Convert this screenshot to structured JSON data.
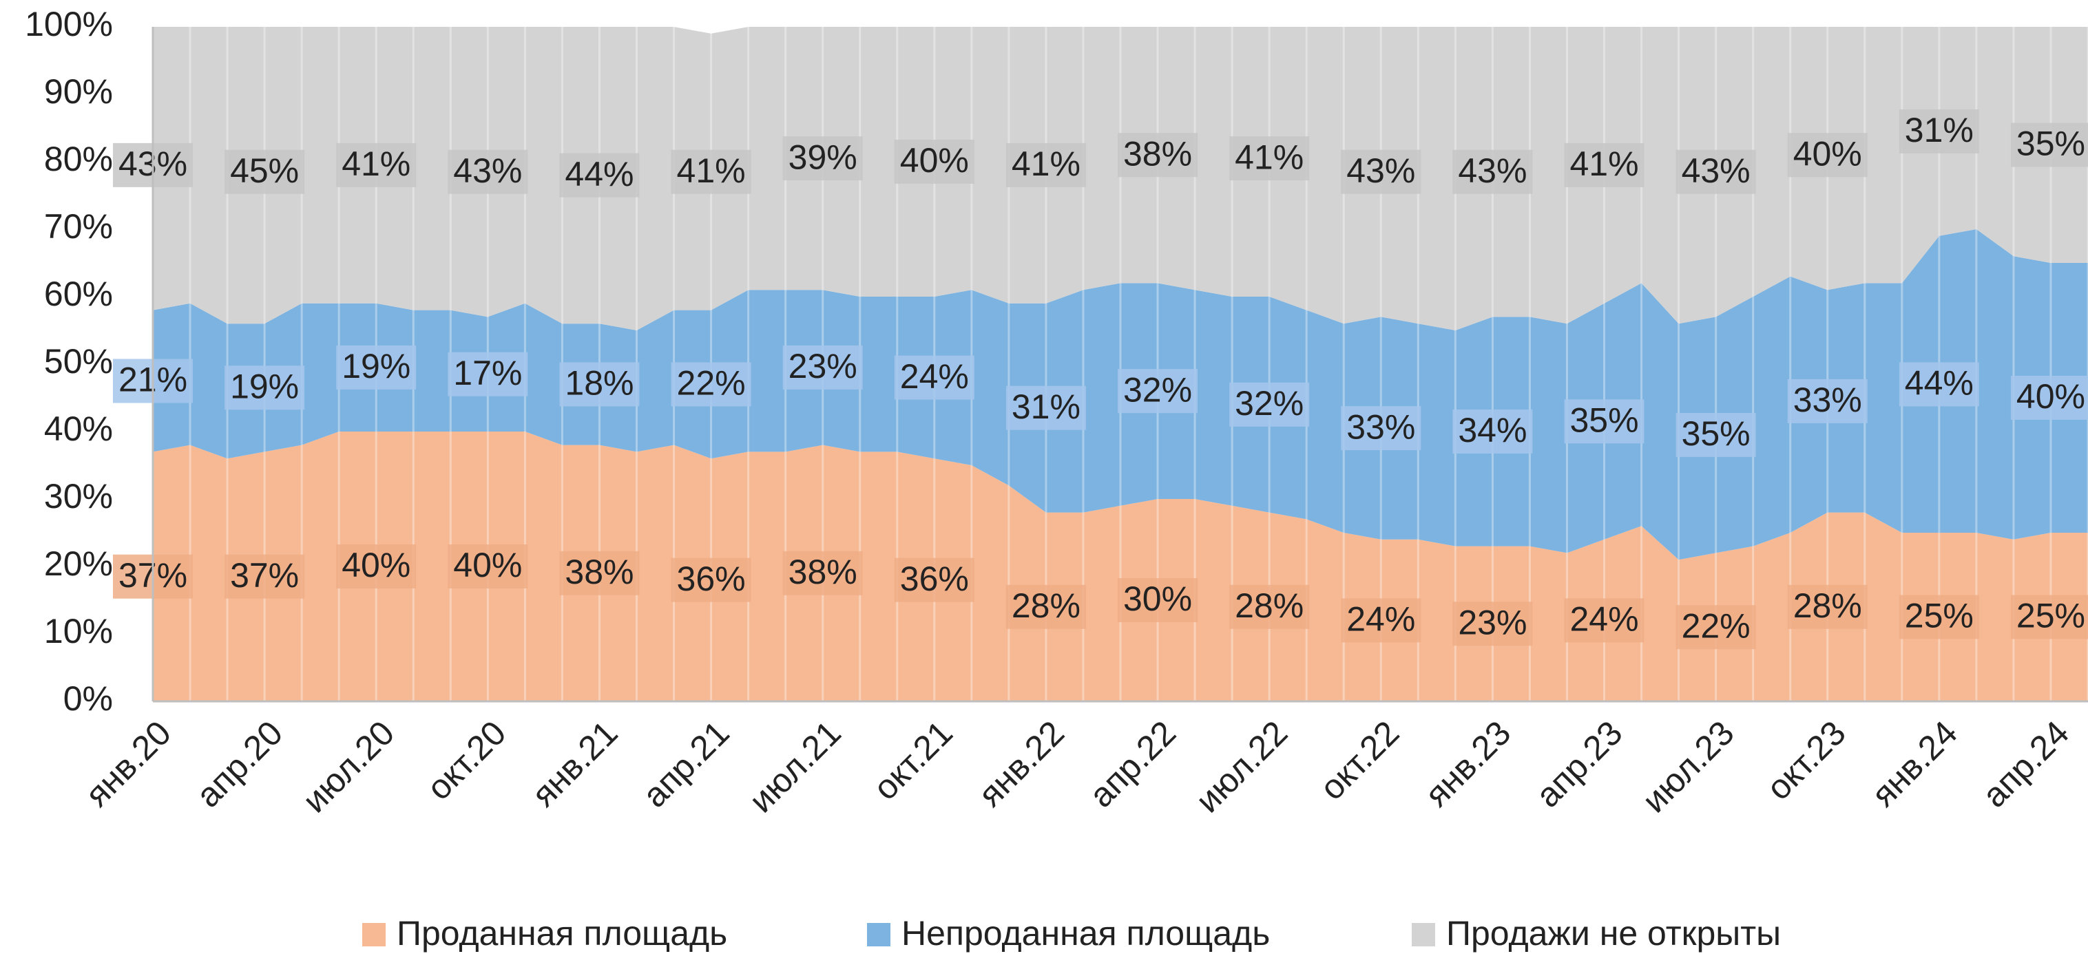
{
  "chart_data": {
    "type": "stacked_area",
    "categories": [
      "янв.20",
      null,
      null,
      "апр.20",
      null,
      null,
      "июл.20",
      null,
      null,
      "окт.20",
      null,
      null,
      "янв.21",
      null,
      null,
      "апр.21",
      null,
      null,
      "июл.21",
      null,
      null,
      "окт.21",
      null,
      null,
      "янв.22",
      null,
      null,
      "апр.22",
      null,
      null,
      "июл.22",
      null,
      null,
      "окт.22",
      null,
      null,
      "янв.23",
      null,
      null,
      "апр.23",
      null,
      null,
      "июл.23",
      null,
      null,
      "окт.23",
      null,
      null,
      "янв.24",
      null,
      null,
      "апр.24",
      null
    ],
    "series": [
      {
        "name": "Проданная площадь",
        "color": "#f6b994",
        "label_bg": "#f0ad86",
        "values": [
          37,
          38,
          36,
          37,
          38,
          40,
          40,
          40,
          40,
          40,
          40,
          38,
          38,
          37,
          38,
          36,
          37,
          37,
          38,
          37,
          37,
          36,
          35,
          32,
          28,
          28,
          29,
          30,
          30,
          29,
          28,
          27,
          25,
          24,
          24,
          23,
          23,
          23,
          22,
          24,
          26,
          21,
          22,
          23,
          25,
          28,
          28,
          25,
          25,
          25,
          24,
          25,
          25
        ],
        "value_labels": [
          "37%",
          null,
          null,
          "37%",
          null,
          null,
          "40%",
          null,
          null,
          "40%",
          null,
          null,
          "38%",
          null,
          null,
          "36%",
          null,
          null,
          "38%",
          null,
          null,
          "36%",
          null,
          null,
          "28%",
          null,
          null,
          "30%",
          null,
          null,
          "28%",
          null,
          null,
          "24%",
          null,
          null,
          "23%",
          null,
          null,
          "24%",
          null,
          null,
          "22%",
          null,
          null,
          "28%",
          null,
          null,
          "25%",
          null,
          null,
          "25%",
          null
        ]
      },
      {
        "name": "Непроданная площадь",
        "color": "#7db3e0",
        "label_bg": "#a4c6ec",
        "values": [
          21,
          21,
          20,
          19,
          21,
          19,
          19,
          18,
          18,
          17,
          19,
          18,
          18,
          18,
          20,
          22,
          24,
          24,
          23,
          23,
          23,
          24,
          26,
          27,
          31,
          33,
          33,
          32,
          31,
          31,
          32,
          31,
          31,
          33,
          32,
          32,
          34,
          34,
          34,
          35,
          36,
          35,
          35,
          37,
          38,
          33,
          34,
          37,
          44,
          45,
          42,
          40,
          40
        ],
        "value_labels": [
          "21%",
          null,
          null,
          "19%",
          null,
          null,
          "19%",
          null,
          null,
          "17%",
          null,
          null,
          "18%",
          null,
          null,
          "22%",
          null,
          null,
          "23%",
          null,
          null,
          "24%",
          null,
          null,
          "31%",
          null,
          null,
          "32%",
          null,
          null,
          "32%",
          null,
          null,
          "33%",
          null,
          null,
          "34%",
          null,
          null,
          "35%",
          null,
          null,
          "35%",
          null,
          null,
          "33%",
          null,
          null,
          "44%",
          null,
          null,
          "40%",
          null
        ]
      },
      {
        "name": "Продажи не открыты",
        "color": "#d3d3d3",
        "label_bg": "#c6c6c6",
        "values": [
          43,
          41,
          44,
          45,
          41,
          41,
          41,
          42,
          42,
          43,
          41,
          44,
          44,
          45,
          42,
          41,
          39,
          39,
          39,
          40,
          40,
          40,
          39,
          41,
          41,
          39,
          38,
          38,
          39,
          40,
          41,
          42,
          44,
          43,
          44,
          45,
          43,
          43,
          44,
          41,
          38,
          44,
          43,
          40,
          37,
          40,
          38,
          38,
          31,
          30,
          34,
          35,
          35
        ],
        "value_labels": [
          "43%",
          null,
          null,
          "45%",
          null,
          null,
          "41%",
          null,
          null,
          "43%",
          null,
          null,
          "44%",
          null,
          null,
          "41%",
          null,
          null,
          "39%",
          null,
          null,
          "40%",
          null,
          null,
          "41%",
          null,
          null,
          "38%",
          null,
          null,
          "41%",
          null,
          null,
          "43%",
          null,
          null,
          "43%",
          null,
          null,
          "41%",
          null,
          null,
          "43%",
          null,
          null,
          "40%",
          null,
          null,
          "31%",
          null,
          null,
          "35%",
          null
        ]
      }
    ],
    "ylim": [
      0,
      100
    ],
    "yticks": [
      {
        "value": 0,
        "label": "0%"
      },
      {
        "value": 10,
        "label": "10%"
      },
      {
        "value": 20,
        "label": "20%"
      },
      {
        "value": 30,
        "label": "30%"
      },
      {
        "value": 40,
        "label": "40%"
      },
      {
        "value": 50,
        "label": "50%"
      },
      {
        "value": 60,
        "label": "60%"
      },
      {
        "value": 70,
        "label": "70%"
      },
      {
        "value": 80,
        "label": "80%"
      },
      {
        "value": 90,
        "label": "90%"
      },
      {
        "value": 100,
        "label": "100%"
      }
    ],
    "grid": true,
    "legend": "bottom"
  }
}
